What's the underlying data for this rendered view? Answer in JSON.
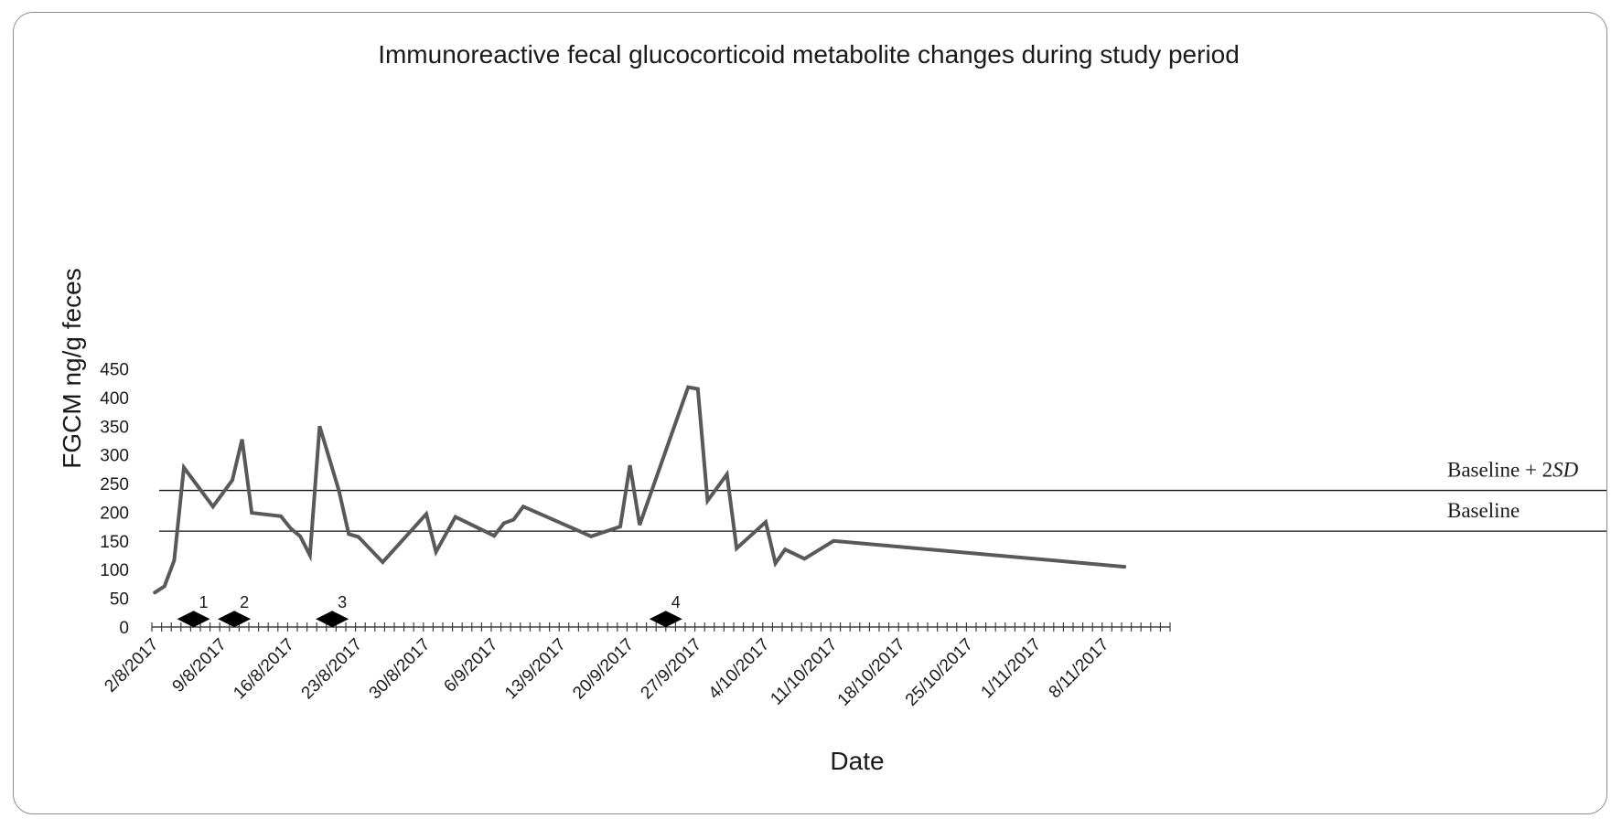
{
  "chart_data": {
    "type": "line",
    "title": "Immunoreactive fecal glucocorticoid metabolite changes during study period",
    "xlabel": "Date",
    "ylabel": "FGCM ng/g feces",
    "ylim": [
      0,
      450
    ],
    "yticks": [
      "0",
      "50",
      "100",
      "150",
      "200",
      "250",
      "300",
      "350",
      "400",
      "450"
    ],
    "x_start_day": 0,
    "x_end_day": 105,
    "xticks": [
      {
        "day": 0,
        "label": "2/8/2017"
      },
      {
        "day": 7,
        "label": "9/8/2017"
      },
      {
        "day": 14,
        "label": "16/8/2017"
      },
      {
        "day": 21,
        "label": "23/8/2017"
      },
      {
        "day": 28,
        "label": "30/8/2017"
      },
      {
        "day": 35,
        "label": "6/9/2017"
      },
      {
        "day": 42,
        "label": "13/9/2017"
      },
      {
        "day": 49,
        "label": "20/9/2017"
      },
      {
        "day": 56,
        "label": "27/9/2017"
      },
      {
        "day": 63,
        "label": "4/10/2017"
      },
      {
        "day": 70,
        "label": "11/10/2017"
      },
      {
        "day": 77,
        "label": "18/10/2017"
      },
      {
        "day": 84,
        "label": "25/10/2017"
      },
      {
        "day": 91,
        "label": "1/11/2017"
      },
      {
        "day": 98,
        "label": "8/11/2017"
      }
    ],
    "series": [
      {
        "name": "FGCM",
        "color": "#595959",
        "points": [
          [
            0.3,
            60
          ],
          [
            1.3,
            71
          ],
          [
            2.3,
            116
          ],
          [
            3.3,
            278
          ],
          [
            6.3,
            210
          ],
          [
            8.3,
            256
          ],
          [
            9.3,
            327
          ],
          [
            10.3,
            199
          ],
          [
            13.3,
            193
          ],
          [
            14.3,
            172
          ],
          [
            15.3,
            158
          ],
          [
            16.3,
            125
          ],
          [
            17.3,
            350
          ],
          [
            19.3,
            237
          ],
          [
            20.3,
            162
          ],
          [
            21.3,
            157
          ],
          [
            23.8,
            113
          ],
          [
            28.3,
            197
          ],
          [
            29.3,
            131
          ],
          [
            31.3,
            192
          ],
          [
            35.3,
            159
          ],
          [
            36.3,
            181
          ],
          [
            37.3,
            187
          ],
          [
            38.3,
            210
          ],
          [
            45.3,
            158
          ],
          [
            48.3,
            175
          ],
          [
            49.3,
            282
          ],
          [
            50.3,
            178
          ],
          [
            55.3,
            418
          ],
          [
            56.3,
            415
          ],
          [
            57.3,
            220
          ],
          [
            59.3,
            266
          ],
          [
            60.3,
            137
          ],
          [
            63.3,
            183
          ],
          [
            64.3,
            111
          ],
          [
            65.3,
            135
          ],
          [
            67.3,
            119
          ],
          [
            70.3,
            150
          ],
          [
            100.3,
            105
          ]
        ]
      }
    ],
    "reference_lines": [
      {
        "name": "Baseline + 2SD",
        "value": 238,
        "label_main": "Baseline + 2",
        "label_italic": "SD"
      },
      {
        "name": "Baseline",
        "value": 167,
        "label_main": "Baseline",
        "label_italic": ""
      }
    ],
    "events": [
      {
        "label": "1",
        "day": 2.6
      },
      {
        "label": "2",
        "day": 6.8
      },
      {
        "label": "3",
        "day": 16.9
      },
      {
        "label": "4",
        "day": 51.3
      }
    ],
    "event_marker_value": 14,
    "grid": false,
    "legend": "none"
  }
}
